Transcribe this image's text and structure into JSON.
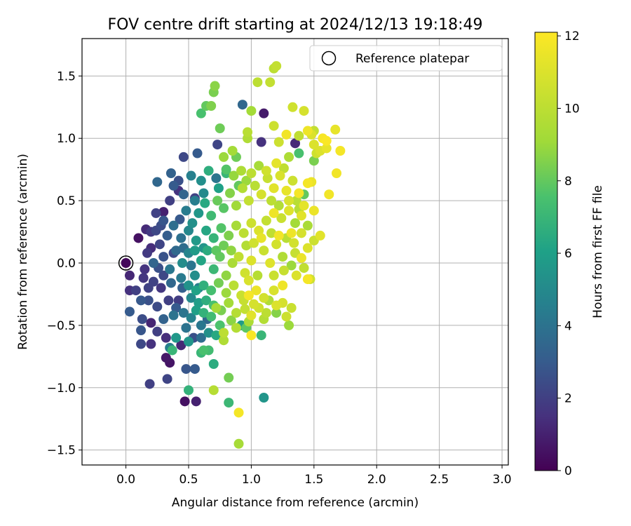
{
  "chart_data": {
    "type": "scatter",
    "title": "FOV centre drift starting at 2024/12/13 19:18:49",
    "xlabel": "Angular distance from reference (arcmin)",
    "ylabel": "Rotation from reference (arcmin)",
    "xlim": [
      -0.35,
      3.05
    ],
    "ylim": [
      -1.62,
      1.8
    ],
    "xticks": [
      0.0,
      0.5,
      1.0,
      1.5,
      2.0,
      2.5,
      3.0
    ],
    "xtick_labels": [
      "0.0",
      "0.5",
      "1.0",
      "1.5",
      "2.0",
      "2.5",
      "3.0"
    ],
    "yticks": [
      -1.5,
      -1.0,
      -0.5,
      0.0,
      0.5,
      1.0,
      1.5
    ],
    "ytick_labels": [
      "−1.5",
      "−1.0",
      "−0.5",
      "0.0",
      "0.5",
      "1.0",
      "1.5"
    ],
    "grid": true,
    "legend": {
      "position": "top-right",
      "label": "Reference platepar"
    },
    "reference_point": {
      "x": 0.0,
      "y": 0.0
    },
    "colorbar": {
      "label": "Hours from first FF file",
      "min": 0,
      "max": 12.1,
      "ticks": [
        0,
        2,
        4,
        6,
        8,
        10,
        12
      ],
      "tick_labels": [
        "0",
        "2",
        "4",
        "6",
        "8",
        "10",
        "12"
      ],
      "colormap": "viridis"
    },
    "points": [
      [
        0.0,
        0.0,
        0.2
      ],
      [
        0.03,
        -0.1,
        1.2
      ],
      [
        0.03,
        -0.22,
        1.5
      ],
      [
        0.03,
        -0.39,
        3.0
      ],
      [
        0.1,
        0.2,
        0.5
      ],
      [
        0.08,
        -0.22,
        2.0
      ],
      [
        0.13,
        -0.45,
        2.5
      ],
      [
        0.12,
        -0.54,
        2.8
      ],
      [
        0.12,
        -0.65,
        2.3
      ],
      [
        0.19,
        -0.97,
        2.0
      ],
      [
        0.2,
        -0.65,
        1.5
      ],
      [
        0.17,
        0.08,
        1.8
      ],
      [
        0.16,
        0.27,
        1.3
      ],
      [
        0.2,
        0.25,
        1.8
      ],
      [
        0.25,
        0.65,
        3.5
      ],
      [
        0.28,
        0.3,
        2.5
      ],
      [
        0.3,
        0.41,
        1.0
      ],
      [
        0.32,
        -0.76,
        0.7
      ],
      [
        0.33,
        -0.93,
        2.2
      ],
      [
        0.35,
        -0.8,
        0.6
      ],
      [
        0.35,
        0.5,
        2.0
      ],
      [
        0.35,
        -0.68,
        4.5
      ],
      [
        0.37,
        -0.7,
        7.0
      ],
      [
        0.38,
        0.62,
        3.0
      ],
      [
        0.42,
        0.58,
        1.6
      ],
      [
        0.46,
        0.85,
        2.3
      ],
      [
        0.47,
        -1.11,
        0.5
      ],
      [
        0.48,
        -0.85,
        2.8
      ],
      [
        0.5,
        -0.63,
        5.5
      ],
      [
        0.5,
        -1.02,
        6.8
      ],
      [
        0.55,
        -0.85,
        3.0
      ],
      [
        0.55,
        0.52,
        2.1
      ],
      [
        0.55,
        0.5,
        4.5
      ],
      [
        0.56,
        -1.11,
        1.0
      ],
      [
        0.56,
        -0.38,
        6.0
      ],
      [
        0.57,
        0.88,
        3.0
      ],
      [
        0.6,
        1.2,
        7.5
      ],
      [
        0.6,
        -0.72,
        7.0
      ],
      [
        0.62,
        -0.7,
        7.5
      ],
      [
        0.64,
        1.26,
        8.0
      ],
      [
        0.66,
        -0.7,
        7.3
      ],
      [
        0.68,
        1.26,
        8.5
      ],
      [
        0.7,
        1.37,
        8.4
      ],
      [
        0.71,
        1.42,
        8.7
      ],
      [
        0.7,
        -0.81,
        6.5
      ],
      [
        0.7,
        -1.02,
        9.8
      ],
      [
        0.73,
        0.95,
        2.2
      ],
      [
        0.75,
        1.08,
        8.2
      ],
      [
        0.78,
        0.85,
        9.0
      ],
      [
        0.8,
        0.75,
        7.7
      ],
      [
        0.82,
        -0.92,
        8.3
      ],
      [
        0.82,
        -1.12,
        7.1
      ],
      [
        0.85,
        0.9,
        9.2
      ],
      [
        0.88,
        0.85,
        8.2
      ],
      [
        0.9,
        -1.2,
        11.8
      ],
      [
        0.9,
        -1.45,
        9.3
      ],
      [
        0.93,
        1.27,
        3.5
      ],
      [
        0.97,
        1.0,
        9.6
      ],
      [
        0.97,
        1.05,
        9.9
      ],
      [
        1.0,
        1.22,
        9.2
      ],
      [
        1.05,
        1.45,
        10.0
      ],
      [
        1.08,
        0.97,
        1.5
      ],
      [
        1.1,
        1.2,
        0.8
      ],
      [
        1.1,
        -1.08,
        5.5
      ],
      [
        1.15,
        1.45,
        10.2
      ],
      [
        1.18,
        1.56,
        10.0
      ],
      [
        1.18,
        1.1,
        10.5
      ],
      [
        1.2,
        1.58,
        10.2
      ],
      [
        1.22,
        0.97,
        10.5
      ],
      [
        1.28,
        1.03,
        11.7
      ],
      [
        1.3,
        0.85,
        9.5
      ],
      [
        1.33,
        1.25,
        10.6
      ],
      [
        1.35,
        0.96,
        1.3
      ],
      [
        1.38,
        1.02,
        10.1
      ],
      [
        1.38,
        0.88,
        7.5
      ],
      [
        1.42,
        1.22,
        10.8
      ],
      [
        1.42,
        0.55,
        8.0
      ],
      [
        1.45,
        1.06,
        11.6
      ],
      [
        1.48,
        1.03,
        11.0
      ],
      [
        1.5,
        1.06,
        10.2
      ],
      [
        1.48,
        0.65,
        11.5
      ],
      [
        1.5,
        0.82,
        8.4
      ],
      [
        1.5,
        0.95,
        11.0
      ],
      [
        1.52,
        0.88,
        10.6
      ],
      [
        1.55,
        0.9,
        11.0
      ],
      [
        1.57,
        1.0,
        11.9
      ],
      [
        1.6,
        0.98,
        12.0
      ],
      [
        1.6,
        0.92,
        11.4
      ],
      [
        1.62,
        0.55,
        11.7
      ],
      [
        1.67,
        1.07,
        11.4
      ],
      [
        1.68,
        0.72,
        11.7
      ],
      [
        1.71,
        0.9,
        11.8
      ],
      [
        1.45,
        0.64,
        11.8
      ],
      [
        1.45,
        -0.13,
        11.8
      ],
      [
        1.47,
        -0.13,
        10.6
      ],
      [
        1.5,
        0.18,
        10.5
      ],
      [
        1.55,
        0.22,
        11.2
      ],
      [
        1.45,
        0.12,
        11.0
      ],
      [
        1.4,
        0.38,
        11.2
      ],
      [
        1.38,
        0.43,
        9.8
      ],
      [
        1.35,
        0.08,
        10.3
      ],
      [
        1.32,
        0.24,
        11.6
      ],
      [
        1.32,
        -0.36,
        10.4
      ],
      [
        1.35,
        0.32,
        9.2
      ],
      [
        1.25,
        -0.18,
        11.6
      ],
      [
        1.28,
        -0.43,
        10.5
      ],
      [
        1.3,
        -0.5,
        9.0
      ],
      [
        1.25,
        -0.32,
        10.8
      ],
      [
        1.2,
        -0.4,
        8.6
      ],
      [
        1.18,
        -0.22,
        10.9
      ],
      [
        1.12,
        -0.4,
        10.0
      ],
      [
        1.1,
        -0.45,
        9.7
      ],
      [
        1.0,
        -0.58,
        12.0
      ],
      [
        1.02,
        -0.33,
        10.8
      ],
      [
        0.98,
        -0.26,
        11.8
      ],
      [
        0.95,
        -0.37,
        10.2
      ],
      [
        0.92,
        -0.5,
        5.8
      ],
      [
        0.98,
        -0.47,
        9.5
      ],
      [
        0.88,
        -0.52,
        9.7
      ],
      [
        1.08,
        -0.58,
        7.0
      ],
      [
        0.78,
        -0.56,
        10.0
      ],
      [
        0.75,
        -0.5,
        7.6
      ],
      [
        0.78,
        -0.62,
        9.6
      ],
      [
        0.72,
        -0.36,
        9.3
      ],
      [
        0.68,
        -0.43,
        7.3
      ],
      [
        0.62,
        -0.4,
        6.8
      ],
      [
        0.65,
        -0.45,
        3.5
      ],
      [
        0.6,
        -0.5,
        4.2
      ],
      [
        0.4,
        -0.6,
        5.6
      ],
      [
        0.38,
        -0.42,
        4.0
      ],
      [
        0.42,
        -0.3,
        1.9
      ],
      [
        0.45,
        -0.2,
        3.2
      ],
      [
        0.48,
        -0.52,
        4.0
      ],
      [
        0.52,
        -0.28,
        5.0
      ],
      [
        0.58,
        -0.2,
        4.5
      ],
      [
        0.6,
        -0.6,
        3.8
      ],
      [
        0.55,
        -0.1,
        5.2
      ],
      [
        0.25,
        -0.35,
        2.4
      ],
      [
        0.28,
        -0.2,
        1.7
      ],
      [
        0.22,
        -0.15,
        2.1
      ],
      [
        0.18,
        -0.3,
        2.6
      ],
      [
        0.2,
        -0.48,
        1.1
      ],
      [
        0.25,
        -0.55,
        2.0
      ],
      [
        0.3,
        -0.45,
        3.3
      ],
      [
        0.32,
        -0.6,
        1.4
      ],
      [
        0.15,
        -0.05,
        1.6
      ],
      [
        0.12,
        -0.3,
        2.9
      ],
      [
        0.22,
        0.0,
        3.4
      ],
      [
        0.3,
        0.05,
        2.7
      ],
      [
        0.35,
        -0.05,
        4.2
      ],
      [
        0.4,
        0.1,
        3.6
      ],
      [
        0.45,
        0.0,
        5.1
      ],
      [
        0.5,
        0.08,
        4.8
      ],
      [
        0.55,
        0.1,
        5.8
      ],
      [
        0.6,
        0.02,
        6.2
      ],
      [
        0.65,
        0.1,
        6.5
      ],
      [
        0.7,
        -0.05,
        7.1
      ],
      [
        0.75,
        0.05,
        8.0
      ],
      [
        0.8,
        -0.1,
        8.8
      ],
      [
        0.85,
        0.0,
        9.4
      ],
      [
        0.9,
        0.05,
        10.1
      ],
      [
        0.95,
        -0.08,
        10.6
      ],
      [
        1.0,
        0.02,
        11.0
      ],
      [
        1.05,
        -0.1,
        9.8
      ],
      [
        1.1,
        0.1,
        10.4
      ],
      [
        1.15,
        0.0,
        11.1
      ],
      [
        1.2,
        0.15,
        10.7
      ],
      [
        1.25,
        0.05,
        9.6
      ],
      [
        0.27,
        0.15,
        2.2
      ],
      [
        0.33,
        0.22,
        3.1
      ],
      [
        0.38,
        0.3,
        3.8
      ],
      [
        0.43,
        0.35,
        2.9
      ],
      [
        0.48,
        0.42,
        4.4
      ],
      [
        0.53,
        0.32,
        5.3
      ],
      [
        0.58,
        0.4,
        5.6
      ],
      [
        0.63,
        0.48,
        6.4
      ],
      [
        0.68,
        0.38,
        7.2
      ],
      [
        0.73,
        0.5,
        8.1
      ],
      [
        0.78,
        0.44,
        7.8
      ],
      [
        0.83,
        0.56,
        8.6
      ],
      [
        0.88,
        0.46,
        9.1
      ],
      [
        0.93,
        0.6,
        9.7
      ],
      [
        0.98,
        0.5,
        10.2
      ],
      [
        1.03,
        0.62,
        9.9
      ],
      [
        1.08,
        0.55,
        10.8
      ],
      [
        1.13,
        0.68,
        10.3
      ],
      [
        1.18,
        0.6,
        11.2
      ],
      [
        1.23,
        0.7,
        10.9
      ],
      [
        1.28,
        0.58,
        11.4
      ],
      [
        1.33,
        0.66,
        10.5
      ],
      [
        0.36,
        0.72,
        3.3
      ],
      [
        0.42,
        0.66,
        2.6
      ],
      [
        0.52,
        0.7,
        4.6
      ],
      [
        0.6,
        0.66,
        5.2
      ],
      [
        0.66,
        0.74,
        6.6
      ],
      [
        0.72,
        0.68,
        4.1
      ],
      [
        0.8,
        0.72,
        7.0
      ],
      [
        0.86,
        0.7,
        8.9
      ],
      [
        0.92,
        0.74,
        9.5
      ],
      [
        1.0,
        0.72,
        10.0
      ],
      [
        1.06,
        0.78,
        9.3
      ],
      [
        1.12,
        0.74,
        10.6
      ],
      [
        1.2,
        0.8,
        11.3
      ],
      [
        1.26,
        0.76,
        10.1
      ],
      [
        0.3,
        -0.1,
        2.3
      ],
      [
        0.36,
        -0.16,
        3.5
      ],
      [
        0.44,
        -0.12,
        4.3
      ],
      [
        0.5,
        -0.18,
        5.4
      ],
      [
        0.56,
        -0.22,
        6.1
      ],
      [
        0.62,
        -0.18,
        6.7
      ],
      [
        0.68,
        -0.22,
        7.4
      ],
      [
        0.74,
        -0.16,
        8.3
      ],
      [
        0.8,
        -0.24,
        9.0
      ],
      [
        0.86,
        -0.18,
        9.9
      ],
      [
        0.92,
        -0.26,
        10.4
      ],
      [
        0.98,
        -0.14,
        10.9
      ],
      [
        1.04,
        -0.22,
        11.5
      ],
      [
        1.1,
        -0.28,
        10.7
      ],
      [
        0.24,
        0.4,
        2.1
      ],
      [
        0.3,
        0.34,
        2.8
      ],
      [
        0.44,
        0.2,
        3.9
      ],
      [
        0.5,
        0.26,
        4.9
      ],
      [
        0.56,
        0.18,
        5.7
      ],
      [
        0.64,
        0.26,
        6.3
      ],
      [
        0.7,
        0.2,
        6.9
      ],
      [
        0.76,
        0.28,
        7.7
      ],
      [
        0.82,
        0.22,
        8.5
      ],
      [
        0.88,
        0.3,
        9.3
      ],
      [
        0.94,
        0.24,
        10.0
      ],
      [
        1.0,
        0.32,
        10.5
      ],
      [
        1.06,
        0.26,
        11.0
      ],
      [
        1.12,
        0.34,
        10.2
      ],
      [
        1.18,
        0.4,
        11.6
      ],
      [
        1.24,
        0.36,
        10.4
      ],
      [
        1.3,
        0.42,
        11.1
      ],
      [
        1.36,
        0.5,
        9.9
      ],
      [
        1.42,
        0.46,
        11.3
      ],
      [
        1.4,
        0.24,
        10.8
      ],
      [
        1.45,
        0.3,
        9.4
      ],
      [
        1.5,
        0.42,
        11.5
      ],
      [
        0.34,
        -0.3,
        2.0
      ],
      [
        0.4,
        -0.36,
        3.0
      ],
      [
        0.46,
        -0.4,
        4.1
      ],
      [
        0.52,
        -0.44,
        4.7
      ],
      [
        0.58,
        -0.32,
        5.9
      ],
      [
        0.64,
        -0.3,
        6.6
      ],
      [
        0.7,
        -0.34,
        7.5
      ],
      [
        0.76,
        -0.38,
        8.4
      ],
      [
        0.82,
        -0.32,
        9.2
      ],
      [
        0.88,
        -0.4,
        9.8
      ],
      [
        0.94,
        -0.3,
        10.3
      ],
      [
        1.0,
        -0.42,
        11.2
      ],
      [
        1.06,
        -0.36,
        10.6
      ],
      [
        1.14,
        -0.3,
        9.6
      ],
      [
        1.2,
        -0.34,
        11.0
      ],
      [
        0.46,
        0.55,
        3.4
      ],
      [
        0.62,
        0.56,
        5.0
      ],
      [
        0.74,
        0.6,
        6.0
      ],
      [
        0.9,
        0.62,
        8.0
      ],
      [
        0.96,
        0.66,
        9.0
      ],
      [
        1.16,
        0.5,
        10.0
      ],
      [
        1.22,
        0.46,
        9.7
      ],
      [
        1.3,
        0.5,
        10.9
      ],
      [
        1.38,
        0.56,
        11.8
      ],
      [
        0.66,
        -0.56,
        5.3
      ],
      [
        0.54,
        -0.6,
        2.6
      ],
      [
        0.44,
        -0.66,
        1.2
      ],
      [
        0.72,
        -0.58,
        6.4
      ],
      [
        0.84,
        -0.46,
        8.7
      ],
      [
        0.96,
        -0.52,
        7.9
      ],
      [
        0.38,
        0.08,
        2.4
      ],
      [
        0.46,
        0.12,
        3.7
      ],
      [
        0.52,
        -0.02,
        4.1
      ],
      [
        0.62,
        0.12,
        5.5
      ],
      [
        0.72,
        0.1,
        7.9
      ],
      [
        0.78,
        0.14,
        8.2
      ],
      [
        0.84,
        0.1,
        8.8
      ],
      [
        0.96,
        0.14,
        9.7
      ],
      [
        1.02,
        0.16,
        10.6
      ],
      [
        1.08,
        0.2,
        11.4
      ],
      [
        1.16,
        0.24,
        10.1
      ],
      [
        1.22,
        0.22,
        11.7
      ],
      [
        1.28,
        0.2,
        9.9
      ],
      [
        1.34,
        0.16,
        10.7
      ],
      [
        1.4,
        0.04,
        11.5
      ],
      [
        1.26,
        -0.06,
        10.3
      ],
      [
        1.32,
        -0.02,
        9.0
      ],
      [
        1.18,
        -0.1,
        10.4
      ],
      [
        1.36,
        -0.1,
        11.0
      ],
      [
        1.42,
        -0.04,
        10.1
      ],
      [
        0.26,
        -0.04,
        2.6
      ],
      [
        0.2,
        0.12,
        1.4
      ],
      [
        0.24,
        0.26,
        2.3
      ],
      [
        0.18,
        -0.2,
        2.1
      ],
      [
        0.14,
        -0.12,
        1.7
      ]
    ]
  }
}
